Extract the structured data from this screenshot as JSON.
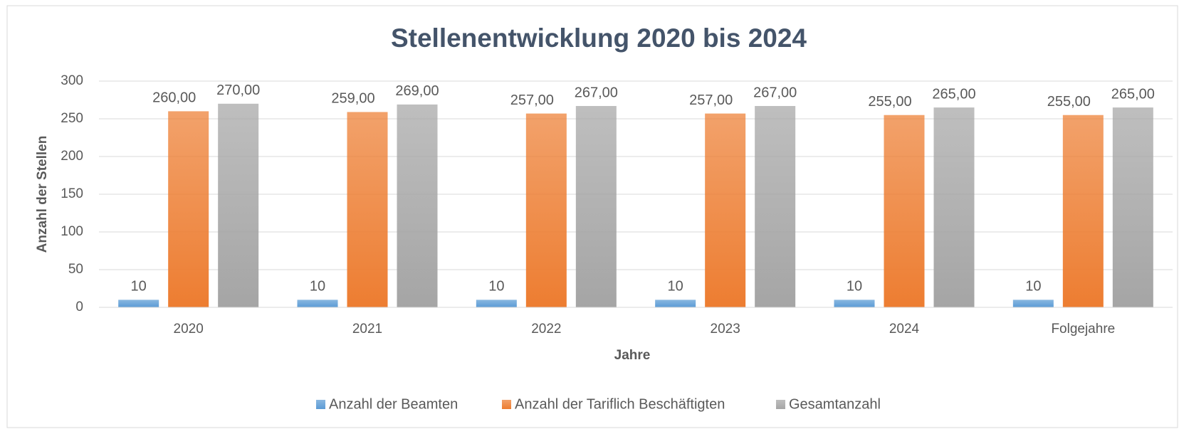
{
  "chart_data": {
    "type": "bar",
    "title": "Stellenentwicklung 2020 bis 2024",
    "x_label": "Jahre",
    "y_label": "Anzahl der Stellen",
    "categories": [
      "2020",
      "2021",
      "2022",
      "2023",
      "2024",
      "Folgejahre"
    ],
    "series": [
      {
        "name": "Anzahl der Beamten",
        "color": "#5b9bd5",
        "values": [
          10,
          10,
          10,
          10,
          10,
          10
        ]
      },
      {
        "name": "Anzahl der Tariflich Beschäftigten",
        "color": "#ed7d31",
        "values": [
          260,
          259,
          257,
          257,
          255,
          255
        ],
        "value_labels": [
          "260,00",
          "259,00",
          "257,00",
          "257,00",
          "255,00",
          "255,00"
        ]
      },
      {
        "name": "Gesamtanzahl",
        "color": "#a5a5a5",
        "values": [
          270,
          269,
          267,
          267,
          265,
          265
        ],
        "value_labels": [
          "270,00",
          "269,00",
          "267,00",
          "267,00",
          "265,00",
          "265,00"
        ]
      }
    ],
    "ylim": [
      0,
      300
    ],
    "yticks": [
      0,
      50,
      100,
      150,
      200,
      250,
      300
    ],
    "grid": true,
    "legend": "bottom"
  }
}
